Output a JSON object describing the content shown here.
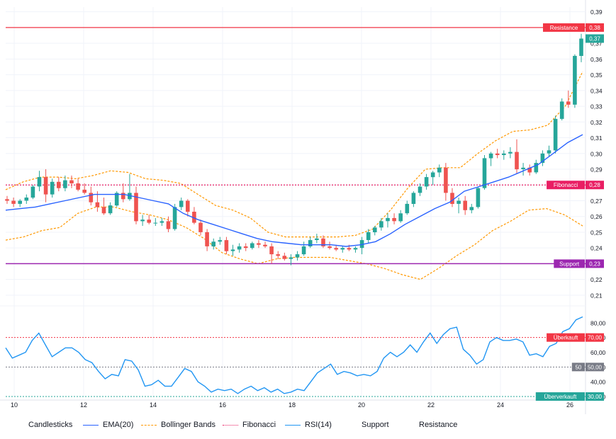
{
  "chart_data": {
    "type": "candlestick",
    "x_tick_labels": [
      "10",
      "12",
      "14",
      "16",
      "18",
      "20",
      "22",
      "24",
      "26"
    ],
    "price_axis": {
      "range": [
        0.205,
        0.393
      ],
      "tick_labels": [
        "0,39",
        "0,38",
        "0,37",
        "0,36",
        "0,35",
        "0,34",
        "0,33",
        "0,32",
        "0,31",
        "0,30",
        "0,29",
        "0,28",
        "0,27",
        "0,26",
        "0,25",
        "0,24",
        "0,23",
        "0,22",
        "0,21"
      ]
    },
    "rsi_axis": {
      "range": [
        30,
        90
      ],
      "tick_labels": [
        "80,00",
        "70,00",
        "60,00",
        "50,00",
        "40,00",
        "30,00"
      ]
    },
    "candles": [
      {
        "o": 0.271,
        "h": 0.273,
        "l": 0.268,
        "c": 0.27
      },
      {
        "o": 0.27,
        "h": 0.272,
        "l": 0.266,
        "c": 0.268
      },
      {
        "o": 0.268,
        "h": 0.271,
        "l": 0.266,
        "c": 0.27
      },
      {
        "o": 0.27,
        "h": 0.274,
        "l": 0.268,
        "c": 0.272
      },
      {
        "o": 0.272,
        "h": 0.28,
        "l": 0.271,
        "c": 0.279
      },
      {
        "o": 0.279,
        "h": 0.289,
        "l": 0.276,
        "c": 0.285
      },
      {
        "o": 0.285,
        "h": 0.29,
        "l": 0.269,
        "c": 0.274
      },
      {
        "o": 0.274,
        "h": 0.284,
        "l": 0.272,
        "c": 0.282
      },
      {
        "o": 0.282,
        "h": 0.285,
        "l": 0.276,
        "c": 0.278
      },
      {
        "o": 0.278,
        "h": 0.286,
        "l": 0.276,
        "c": 0.283
      },
      {
        "o": 0.283,
        "h": 0.286,
        "l": 0.278,
        "c": 0.281
      },
      {
        "o": 0.281,
        "h": 0.284,
        "l": 0.276,
        "c": 0.277
      },
      {
        "o": 0.277,
        "h": 0.281,
        "l": 0.274,
        "c": 0.275
      },
      {
        "o": 0.275,
        "h": 0.279,
        "l": 0.267,
        "c": 0.269
      },
      {
        "o": 0.269,
        "h": 0.276,
        "l": 0.263,
        "c": 0.266
      },
      {
        "o": 0.266,
        "h": 0.272,
        "l": 0.261,
        "c": 0.262
      },
      {
        "o": 0.262,
        "h": 0.269,
        "l": 0.261,
        "c": 0.267
      },
      {
        "o": 0.267,
        "h": 0.276,
        "l": 0.266,
        "c": 0.275
      },
      {
        "o": 0.275,
        "h": 0.281,
        "l": 0.269,
        "c": 0.271
      },
      {
        "o": 0.271,
        "h": 0.287,
        "l": 0.27,
        "c": 0.275
      },
      {
        "o": 0.275,
        "h": 0.279,
        "l": 0.255,
        "c": 0.257
      },
      {
        "o": 0.257,
        "h": 0.261,
        "l": 0.254,
        "c": 0.258
      },
      {
        "o": 0.258,
        "h": 0.261,
        "l": 0.255,
        "c": 0.256
      },
      {
        "o": 0.256,
        "h": 0.259,
        "l": 0.254,
        "c": 0.256
      },
      {
        "o": 0.256,
        "h": 0.259,
        "l": 0.254,
        "c": 0.257
      },
      {
        "o": 0.257,
        "h": 0.26,
        "l": 0.25,
        "c": 0.252
      },
      {
        "o": 0.252,
        "h": 0.268,
        "l": 0.251,
        "c": 0.266
      },
      {
        "o": 0.266,
        "h": 0.272,
        "l": 0.264,
        "c": 0.27
      },
      {
        "o": 0.27,
        "h": 0.271,
        "l": 0.26,
        "c": 0.263
      },
      {
        "o": 0.263,
        "h": 0.266,
        "l": 0.255,
        "c": 0.256
      },
      {
        "o": 0.256,
        "h": 0.258,
        "l": 0.248,
        "c": 0.25
      },
      {
        "o": 0.25,
        "h": 0.252,
        "l": 0.238,
        "c": 0.241
      },
      {
        "o": 0.241,
        "h": 0.246,
        "l": 0.239,
        "c": 0.244
      },
      {
        "o": 0.244,
        "h": 0.247,
        "l": 0.242,
        "c": 0.245
      },
      {
        "o": 0.245,
        "h": 0.247,
        "l": 0.236,
        "c": 0.238
      },
      {
        "o": 0.238,
        "h": 0.242,
        "l": 0.235,
        "c": 0.239
      },
      {
        "o": 0.239,
        "h": 0.243,
        "l": 0.237,
        "c": 0.241
      },
      {
        "o": 0.241,
        "h": 0.243,
        "l": 0.238,
        "c": 0.24
      },
      {
        "o": 0.24,
        "h": 0.244,
        "l": 0.239,
        "c": 0.243
      },
      {
        "o": 0.243,
        "h": 0.245,
        "l": 0.24,
        "c": 0.242
      },
      {
        "o": 0.242,
        "h": 0.244,
        "l": 0.24,
        "c": 0.241
      },
      {
        "o": 0.241,
        "h": 0.243,
        "l": 0.23,
        "c": 0.236
      },
      {
        "o": 0.236,
        "h": 0.238,
        "l": 0.233,
        "c": 0.235
      },
      {
        "o": 0.235,
        "h": 0.237,
        "l": 0.232,
        "c": 0.233
      },
      {
        "o": 0.233,
        "h": 0.236,
        "l": 0.229,
        "c": 0.234
      },
      {
        "o": 0.234,
        "h": 0.238,
        "l": 0.232,
        "c": 0.236
      },
      {
        "o": 0.236,
        "h": 0.244,
        "l": 0.235,
        "c": 0.241
      },
      {
        "o": 0.241,
        "h": 0.247,
        "l": 0.24,
        "c": 0.245
      },
      {
        "o": 0.245,
        "h": 0.249,
        "l": 0.243,
        "c": 0.246
      },
      {
        "o": 0.246,
        "h": 0.248,
        "l": 0.24,
        "c": 0.241
      },
      {
        "o": 0.241,
        "h": 0.244,
        "l": 0.239,
        "c": 0.24
      },
      {
        "o": 0.24,
        "h": 0.242,
        "l": 0.238,
        "c": 0.239
      },
      {
        "o": 0.239,
        "h": 0.241,
        "l": 0.237,
        "c": 0.24
      },
      {
        "o": 0.24,
        "h": 0.242,
        "l": 0.238,
        "c": 0.239
      },
      {
        "o": 0.239,
        "h": 0.241,
        "l": 0.237,
        "c": 0.24
      },
      {
        "o": 0.24,
        "h": 0.247,
        "l": 0.236,
        "c": 0.245
      },
      {
        "o": 0.245,
        "h": 0.252,
        "l": 0.243,
        "c": 0.25
      },
      {
        "o": 0.25,
        "h": 0.254,
        "l": 0.248,
        "c": 0.253
      },
      {
        "o": 0.253,
        "h": 0.259,
        "l": 0.251,
        "c": 0.257
      },
      {
        "o": 0.257,
        "h": 0.262,
        "l": 0.253,
        "c": 0.259
      },
      {
        "o": 0.259,
        "h": 0.262,
        "l": 0.255,
        "c": 0.257
      },
      {
        "o": 0.257,
        "h": 0.264,
        "l": 0.256,
        "c": 0.262
      },
      {
        "o": 0.262,
        "h": 0.27,
        "l": 0.261,
        "c": 0.268
      },
      {
        "o": 0.268,
        "h": 0.276,
        "l": 0.266,
        "c": 0.275
      },
      {
        "o": 0.275,
        "h": 0.281,
        "l": 0.273,
        "c": 0.279
      },
      {
        "o": 0.279,
        "h": 0.287,
        "l": 0.277,
        "c": 0.285
      },
      {
        "o": 0.285,
        "h": 0.289,
        "l": 0.28,
        "c": 0.288
      },
      {
        "o": 0.288,
        "h": 0.293,
        "l": 0.285,
        "c": 0.291
      },
      {
        "o": 0.291,
        "h": 0.294,
        "l": 0.27,
        "c": 0.275
      },
      {
        "o": 0.275,
        "h": 0.278,
        "l": 0.266,
        "c": 0.268
      },
      {
        "o": 0.268,
        "h": 0.272,
        "l": 0.262,
        "c": 0.27
      },
      {
        "o": 0.27,
        "h": 0.273,
        "l": 0.261,
        "c": 0.264
      },
      {
        "o": 0.264,
        "h": 0.268,
        "l": 0.262,
        "c": 0.266
      },
      {
        "o": 0.266,
        "h": 0.279,
        "l": 0.265,
        "c": 0.278
      },
      {
        "o": 0.278,
        "h": 0.299,
        "l": 0.277,
        "c": 0.297
      },
      {
        "o": 0.297,
        "h": 0.301,
        "l": 0.292,
        "c": 0.3
      },
      {
        "o": 0.3,
        "h": 0.303,
        "l": 0.297,
        "c": 0.299
      },
      {
        "o": 0.299,
        "h": 0.302,
        "l": 0.296,
        "c": 0.3
      },
      {
        "o": 0.3,
        "h": 0.304,
        "l": 0.297,
        "c": 0.301
      },
      {
        "o": 0.301,
        "h": 0.309,
        "l": 0.287,
        "c": 0.29
      },
      {
        "o": 0.29,
        "h": 0.294,
        "l": 0.286,
        "c": 0.291
      },
      {
        "o": 0.291,
        "h": 0.293,
        "l": 0.286,
        "c": 0.288
      },
      {
        "o": 0.288,
        "h": 0.296,
        "l": 0.287,
        "c": 0.294
      },
      {
        "o": 0.294,
        "h": 0.302,
        "l": 0.292,
        "c": 0.3
      },
      {
        "o": 0.3,
        "h": 0.305,
        "l": 0.298,
        "c": 0.302
      },
      {
        "o": 0.302,
        "h": 0.324,
        "l": 0.3,
        "c": 0.322
      },
      {
        "o": 0.322,
        "h": 0.335,
        "l": 0.321,
        "c": 0.333
      },
      {
        "o": 0.333,
        "h": 0.34,
        "l": 0.329,
        "c": 0.331
      },
      {
        "o": 0.331,
        "h": 0.363,
        "l": 0.329,
        "c": 0.362
      },
      {
        "o": 0.362,
        "h": 0.376,
        "l": 0.358,
        "c": 0.373
      }
    ],
    "ema20": [
      0.264,
      0.265,
      0.266,
      0.268,
      0.27,
      0.272,
      0.274,
      0.274,
      0.274,
      0.272,
      0.27,
      0.268,
      0.262,
      0.258,
      0.255,
      0.252,
      0.249,
      0.246,
      0.244,
      0.243,
      0.242,
      0.242,
      0.242,
      0.241,
      0.242,
      0.244,
      0.249,
      0.255,
      0.26,
      0.265,
      0.269,
      0.276,
      0.279,
      0.282,
      0.285,
      0.289,
      0.293,
      0.3,
      0.307,
      0.312
    ],
    "bollinger_upper": [
      0.277,
      0.282,
      0.285,
      0.285,
      0.284,
      0.286,
      0.289,
      0.288,
      0.284,
      0.283,
      0.281,
      0.274,
      0.267,
      0.264,
      0.259,
      0.25,
      0.247,
      0.247,
      0.247,
      0.247,
      0.248,
      0.252,
      0.264,
      0.278,
      0.29,
      0.291,
      0.291,
      0.3,
      0.308,
      0.314,
      0.315,
      0.318,
      0.33,
      0.352
    ],
    "bollinger_lower": [
      0.245,
      0.247,
      0.251,
      0.253,
      0.262,
      0.266,
      0.266,
      0.263,
      0.261,
      0.258,
      0.253,
      0.246,
      0.237,
      0.233,
      0.23,
      0.233,
      0.234,
      0.234,
      0.234,
      0.232,
      0.23,
      0.227,
      0.223,
      0.22,
      0.227,
      0.235,
      0.242,
      0.251,
      0.257,
      0.264,
      0.265,
      0.261,
      0.254
    ],
    "rsi14": [
      63,
      56,
      58,
      60,
      68,
      73,
      65,
      57,
      60,
      63,
      63,
      60,
      55,
      53,
      47,
      42,
      45,
      44,
      55,
      54,
      48,
      37,
      38,
      41,
      37,
      37,
      43,
      49,
      47,
      40,
      37,
      33,
      35,
      34,
      35,
      32,
      35,
      37,
      34,
      36,
      33,
      35,
      32,
      33,
      35,
      34,
      40,
      46,
      49,
      52,
      45,
      47,
      46,
      44,
      45,
      44,
      47,
      56,
      60,
      57,
      60,
      65,
      60,
      67,
      73,
      66,
      72,
      76,
      77,
      62,
      58,
      52,
      55,
      67,
      70,
      68,
      68,
      69,
      67,
      58,
      59,
      57,
      64,
      66,
      74,
      76,
      82,
      84
    ],
    "levels": {
      "resistance": {
        "value": 0.38,
        "label": "Resistance",
        "price_label": "0,38",
        "color": "#f23645"
      },
      "fibonacci": {
        "value": 0.28,
        "label": "Fibonacci",
        "price_label": "0,28",
        "color": "#e91e63"
      },
      "support": {
        "value": 0.23,
        "label": "Support",
        "price_label": "0,23",
        "color": "#9c27b0"
      }
    },
    "rsi_levels": {
      "overbought": {
        "value": 70,
        "label": "Überkauft",
        "price_label": "70,00",
        "color": "#f23645"
      },
      "middle": {
        "value": 50,
        "label": "50",
        "price_label": "50,00",
        "color": "#787b86"
      },
      "oversold": {
        "value": 30,
        "label": "Überverkauft",
        "price_label": "30,00",
        "color": "#26a69a"
      }
    },
    "last_price": {
      "value": 0.373,
      "label": "0,37",
      "color": "#26a69a"
    },
    "colors": {
      "up": "#26a69a",
      "down": "#ef5350",
      "ema": "#2962ff",
      "bollinger": "#ff9800",
      "rsi": "#2196f3",
      "grid": "#f0f3fa",
      "axis_text": "#131722"
    }
  },
  "legend": {
    "candlesticks": "Candlesticks",
    "ema": "EMA(20)",
    "bollinger": "Bollinger Bands",
    "fibonacci": "Fibonacci",
    "rsi": "RSI(14)",
    "support": "Support",
    "resistance": "Resistance"
  }
}
